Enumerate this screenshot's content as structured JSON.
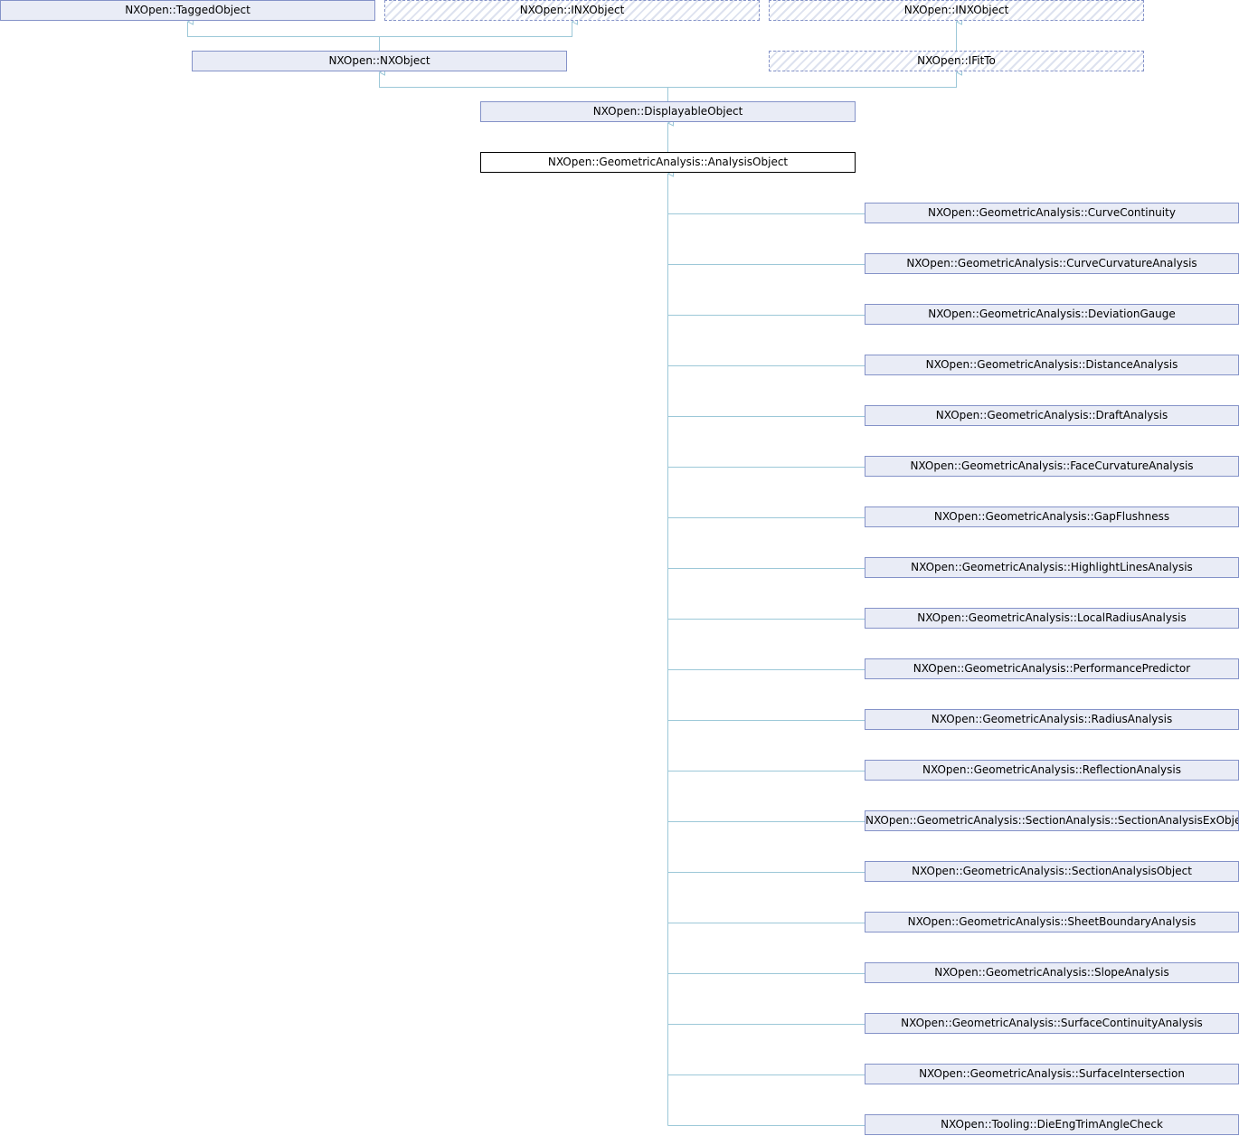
{
  "nodes": {
    "tagged_object": "NXOpen::TaggedObject",
    "inx_object_1": "NXOpen::INXObject",
    "inx_object_2": "NXOpen::INXObject",
    "nx_object": "NXOpen::NXObject",
    "ifit_to": "NXOpen::IFitTo",
    "displayable_object": "NXOpen::DisplayableObject",
    "analysis_object": "NXOpen::GeometricAnalysis::AnalysisObject"
  },
  "subclasses": [
    "NXOpen::GeometricAnalysis::CurveContinuity",
    "NXOpen::GeometricAnalysis::CurveCurvatureAnalysis",
    "NXOpen::GeometricAnalysis::DeviationGauge",
    "NXOpen::GeometricAnalysis::DistanceAnalysis",
    "NXOpen::GeometricAnalysis::DraftAnalysis",
    "NXOpen::GeometricAnalysis::FaceCurvatureAnalysis",
    "NXOpen::GeometricAnalysis::GapFlushness",
    "NXOpen::GeometricAnalysis::HighlightLinesAnalysis",
    "NXOpen::GeometricAnalysis::LocalRadiusAnalysis",
    "NXOpen::GeometricAnalysis::PerformancePredictor",
    "NXOpen::GeometricAnalysis::RadiusAnalysis",
    "NXOpen::GeometricAnalysis::ReflectionAnalysis",
    "NXOpen::GeometricAnalysis::SectionAnalysis::SectionAnalysisExObject",
    "NXOpen::GeometricAnalysis::SectionAnalysisObject",
    "NXOpen::GeometricAnalysis::SheetBoundaryAnalysis",
    "NXOpen::GeometricAnalysis::SlopeAnalysis",
    "NXOpen::GeometricAnalysis::SurfaceContinuityAnalysis",
    "NXOpen::GeometricAnalysis::SurfaceIntersection",
    "NXOpen::Tooling::DieEngTrimAngleCheck"
  ],
  "colors": {
    "edge": "#9cc8d8",
    "node_border": "#8492c8",
    "node_fill": "#e9ecf6"
  }
}
